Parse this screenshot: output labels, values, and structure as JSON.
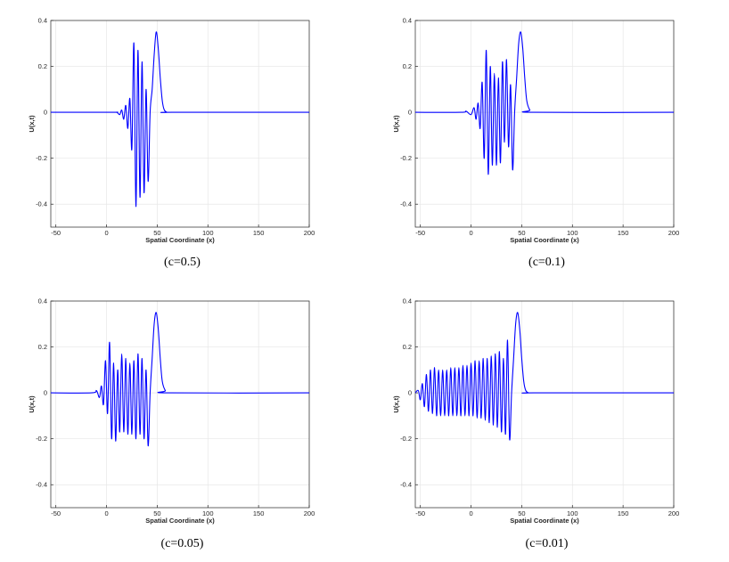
{
  "chart_data": [
    {
      "type": "line",
      "caption": "(c=0.5)",
      "xlabel": "Spatial Coordinate (x)",
      "ylabel": "U(x,t)",
      "xlim": [
        -55,
        200
      ],
      "ylim": [
        -0.5,
        0.4
      ],
      "xticks": [
        -50,
        0,
        50,
        100,
        150,
        200
      ],
      "xtick_labels": [
        "-50",
        "0",
        "50",
        "100",
        "150",
        "200"
      ],
      "yticks": [
        -0.4,
        -0.2,
        0,
        0.2,
        0.4
      ],
      "ytick_labels": [
        "-0.4",
        "-0.2",
        "0",
        "0.2",
        "0.4"
      ],
      "grid": true,
      "line_color": "#0000ff",
      "series": [
        {
          "x": [
            -55,
            5,
            10,
            13,
            15,
            17,
            19,
            21,
            23,
            25,
            27,
            29,
            31,
            33,
            35,
            37,
            39,
            41,
            43,
            45,
            47,
            49,
            51,
            53,
            55,
            57,
            60,
            65,
            200
          ],
          "y": [
            0,
            0,
            0,
            -0.01,
            0.01,
            -0.03,
            0.03,
            -0.07,
            0.06,
            -0.16,
            0.3,
            -0.41,
            0.27,
            -0.37,
            0.22,
            -0.35,
            0.1,
            -0.3,
            0.0,
            0.1,
            0.25,
            0.35,
            0.28,
            0.15,
            0.05,
            0.01,
            0,
            0,
            0
          ]
        }
      ]
    },
    {
      "type": "line",
      "caption": "(c=0.1)",
      "xlabel": "Spatial Coordinate (x)",
      "ylabel": "U(x,t)",
      "xlim": [
        -55,
        200
      ],
      "ylim": [
        -0.5,
        0.4
      ],
      "xticks": [
        -50,
        0,
        50,
        100,
        150,
        200
      ],
      "xtick_labels": [
        "-50",
        "0",
        "50",
        "100",
        "150",
        "200"
      ],
      "yticks": [
        -0.4,
        -0.2,
        0,
        0.2,
        0.4
      ],
      "ytick_labels": [
        "-0.4",
        "-0.2",
        "0",
        "0.2",
        "0.4"
      ],
      "grid": true,
      "line_color": "#0000ff",
      "series": [
        {
          "x": [
            -55,
            -10,
            -5,
            0,
            3,
            5,
            7,
            9,
            11,
            13,
            15,
            17,
            19,
            21,
            23,
            25,
            27,
            29,
            31,
            33,
            35,
            37,
            39,
            41,
            43,
            45,
            47,
            49,
            51,
            53,
            55,
            58,
            62,
            200
          ],
          "y": [
            0,
            0,
            0.005,
            -0.01,
            0.02,
            -0.03,
            0.04,
            -0.07,
            0.13,
            -0.2,
            0.27,
            -0.27,
            0.2,
            -0.23,
            0.17,
            -0.23,
            0.15,
            -0.22,
            0.22,
            -0.13,
            0.23,
            -0.15,
            0.12,
            -0.25,
            0.0,
            0.15,
            0.3,
            0.35,
            0.28,
            0.15,
            0.05,
            0.01,
            0,
            0
          ]
        }
      ]
    },
    {
      "type": "line",
      "caption": "(c=0.05)",
      "xlabel": "Spatial Coordinate (x)",
      "ylabel": "U(x,t)",
      "xlim": [
        -55,
        200
      ],
      "ylim": [
        -0.5,
        0.4
      ],
      "xticks": [
        -50,
        0,
        50,
        100,
        150,
        200
      ],
      "xtick_labels": [
        "-50",
        "0",
        "50",
        "100",
        "150",
        "200"
      ],
      "yticks": [
        -0.4,
        -0.2,
        0,
        0.2,
        0.4
      ],
      "ytick_labels": [
        "-0.4",
        "-0.2",
        "0",
        "0.2",
        "0.4"
      ],
      "grid": true,
      "line_color": "#0000ff",
      "series": [
        {
          "x": [
            -55,
            -15,
            -10,
            -7,
            -5,
            -3,
            -1,
            1,
            3,
            5,
            7,
            9,
            11,
            13,
            15,
            17,
            19,
            21,
            23,
            25,
            27,
            29,
            31,
            33,
            35,
            37,
            39,
            41,
            43,
            45,
            47,
            49,
            51,
            53,
            55,
            58,
            62,
            200
          ],
          "y": [
            0,
            0,
            0.01,
            -0.02,
            0.03,
            -0.05,
            0.14,
            -0.09,
            0.22,
            -0.2,
            0.13,
            -0.21,
            0.1,
            -0.17,
            0.17,
            -0.17,
            0.15,
            -0.18,
            0.13,
            -0.18,
            0.14,
            -0.2,
            0.17,
            -0.18,
            0.15,
            -0.2,
            0.1,
            -0.23,
            0.0,
            0.15,
            0.3,
            0.35,
            0.28,
            0.15,
            0.05,
            0.01,
            0,
            0
          ]
        }
      ]
    },
    {
      "type": "line",
      "caption": "(c=0.01)",
      "xlabel": "Spatial Coordinate (x)",
      "ylabel": "U(x,t)",
      "xlim": [
        -55,
        200
      ],
      "ylim": [
        -0.5,
        0.4
      ],
      "xticks": [
        -50,
        0,
        50,
        100,
        150,
        200
      ],
      "xtick_labels": [
        "-50",
        "0",
        "50",
        "100",
        "150",
        "200"
      ],
      "yticks": [
        -0.4,
        -0.2,
        0,
        0.2,
        0.4
      ],
      "ytick_labels": [
        "-0.4",
        "-0.2",
        "0",
        "0.2",
        "0.4"
      ],
      "grid": true,
      "line_color": "#0000ff",
      "series": [
        {
          "x": [
            -55,
            -52,
            -50,
            -48,
            -46,
            -44,
            -42,
            -40,
            -38,
            -36,
            -34,
            -32,
            -30,
            -28,
            -26,
            -24,
            -22,
            -20,
            -18,
            -16,
            -14,
            -12,
            -10,
            -8,
            -6,
            -4,
            -2,
            0,
            2,
            4,
            6,
            8,
            10,
            12,
            14,
            16,
            18,
            20,
            22,
            24,
            26,
            28,
            30,
            32,
            34,
            36,
            38,
            40,
            42,
            44,
            46,
            48,
            50,
            52,
            54,
            57,
            62,
            200
          ],
          "y": [
            0,
            0.01,
            -0.03,
            0.04,
            -0.06,
            0.08,
            -0.08,
            0.1,
            -0.09,
            0.11,
            -0.1,
            0.1,
            -0.1,
            0.1,
            -0.1,
            0.1,
            -0.1,
            0.11,
            -0.1,
            0.11,
            -0.1,
            0.11,
            -0.1,
            0.12,
            -0.1,
            0.12,
            -0.1,
            0.13,
            -0.1,
            0.14,
            -0.11,
            0.14,
            -0.11,
            0.15,
            -0.12,
            0.15,
            -0.13,
            0.16,
            -0.14,
            0.17,
            -0.15,
            0.18,
            -0.17,
            0.15,
            -0.18,
            0.23,
            -0.2,
            0.0,
            0.15,
            0.3,
            0.35,
            0.28,
            0.15,
            0.05,
            0.01,
            0,
            0,
            0
          ]
        }
      ]
    }
  ]
}
